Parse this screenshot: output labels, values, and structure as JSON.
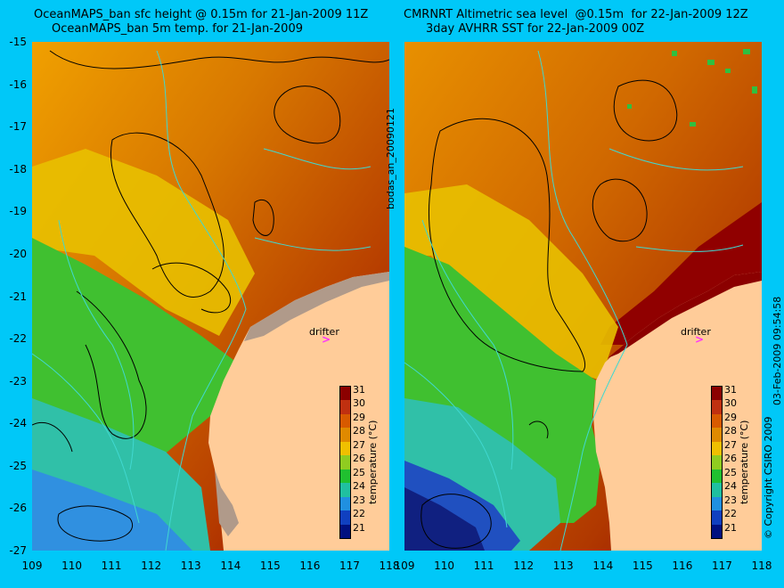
{
  "left_panel": {
    "title_line1": "OceanMAPS_ban sfc height @ 0.15m for 21-Jan-2009 11Z",
    "title_line2": "OceanMAPS_ban 5m temp. for 21-Jan-2009",
    "side_label": "bodas_an_20090121",
    "drifter_label": "drifter",
    "drifter_symbol": ">"
  },
  "right_panel": {
    "title_line1": "CMRNRT Altimetric sea level  @0.15m  for 22-Jan-2009 12Z",
    "title_line2": "3day AVHRR SST for 22-Jan-2009 00Z",
    "side_label": "03-Feb-2009 09:54:58",
    "copyright": "© Copyright CSIRO 2009",
    "drifter_label": "drifter",
    "drifter_symbol": ">"
  },
  "y_ticks": [
    "-15",
    "-16",
    "-17",
    "-18",
    "-19",
    "-20",
    "-21",
    "-22",
    "-23",
    "-24",
    "-25",
    "-26",
    "-27"
  ],
  "x_ticks": [
    "109",
    "110",
    "111",
    "112",
    "113",
    "114",
    "115",
    "116",
    "117",
    "118"
  ],
  "colorbar": {
    "label": "temperature (°C)",
    "ticks": [
      "31",
      "30",
      "29",
      "28",
      "27",
      "26",
      "25",
      "24",
      "23",
      "22",
      "21"
    ],
    "colors": [
      "#8b0000",
      "#c03010",
      "#d85a00",
      "#e08a00",
      "#f0c000",
      "#90cc20",
      "#20c030",
      "#20c0a0",
      "#2090e0",
      "#1040c0",
      "#001080"
    ]
  },
  "colors": {
    "background": "#00c8f8",
    "land": "#ffcc99",
    "coast_shelf": "#b09a8a",
    "contour": "#000000",
    "isobath": "#40d8d0",
    "drifter": "#ff30ff"
  }
}
